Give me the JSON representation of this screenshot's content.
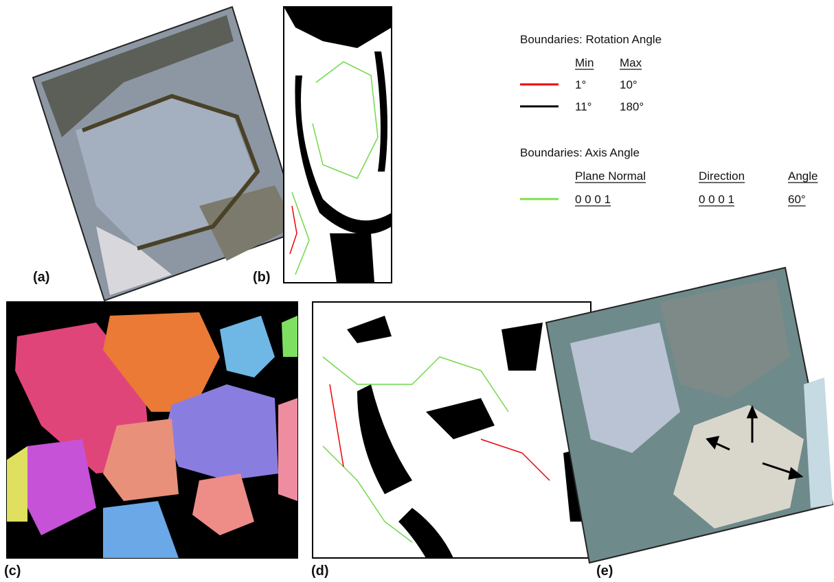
{
  "panels": [
    {
      "label": "(a)"
    },
    {
      "label": "(b)"
    },
    {
      "label": "(c)"
    },
    {
      "label": "(d)"
    },
    {
      "label": "(e)"
    }
  ],
  "legend": {
    "rotation": {
      "title": "Boundaries: Rotation Angle",
      "headers": [
        "Min",
        "Max"
      ],
      "rows": [
        {
          "min": "1°",
          "max": "10°"
        },
        {
          "min": "11°",
          "max": "180°"
        }
      ]
    },
    "axis": {
      "title": "Boundaries: Axis Angle",
      "headers": [
        "Plane Normal",
        "Direction",
        "Angle"
      ],
      "rows": [
        [
          "0 0 0 1",
          "0 0 0 1",
          "60°"
        ]
      ]
    }
  }
}
